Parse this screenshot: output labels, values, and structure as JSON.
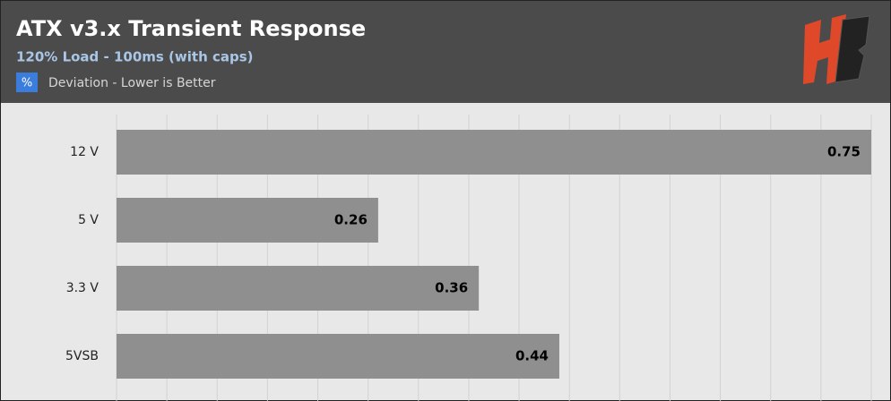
{
  "chart_data": {
    "type": "bar",
    "orientation": "horizontal",
    "title": "ATX v3.x Transient Response",
    "subtitle": "120% Load - 100ms (with caps)",
    "legend_symbol": "%",
    "series": [
      {
        "name": "Deviation - Lower is Better",
        "color": "#8f8f8f",
        "legend_color": "#3b7ddd",
        "values": [
          0.75,
          0.26,
          0.36,
          0.44
        ]
      }
    ],
    "categories": [
      "12 V",
      "5 V",
      "3.3 V",
      "5VSB"
    ],
    "xlim": [
      0,
      0.75
    ],
    "xticks": [
      0,
      0.05,
      0.1,
      0.15,
      0.2,
      0.25,
      0.3,
      0.35,
      0.4,
      0.45,
      0.5,
      0.55,
      0.6,
      0.65,
      0.7,
      0.75
    ],
    "grid": true
  }
}
